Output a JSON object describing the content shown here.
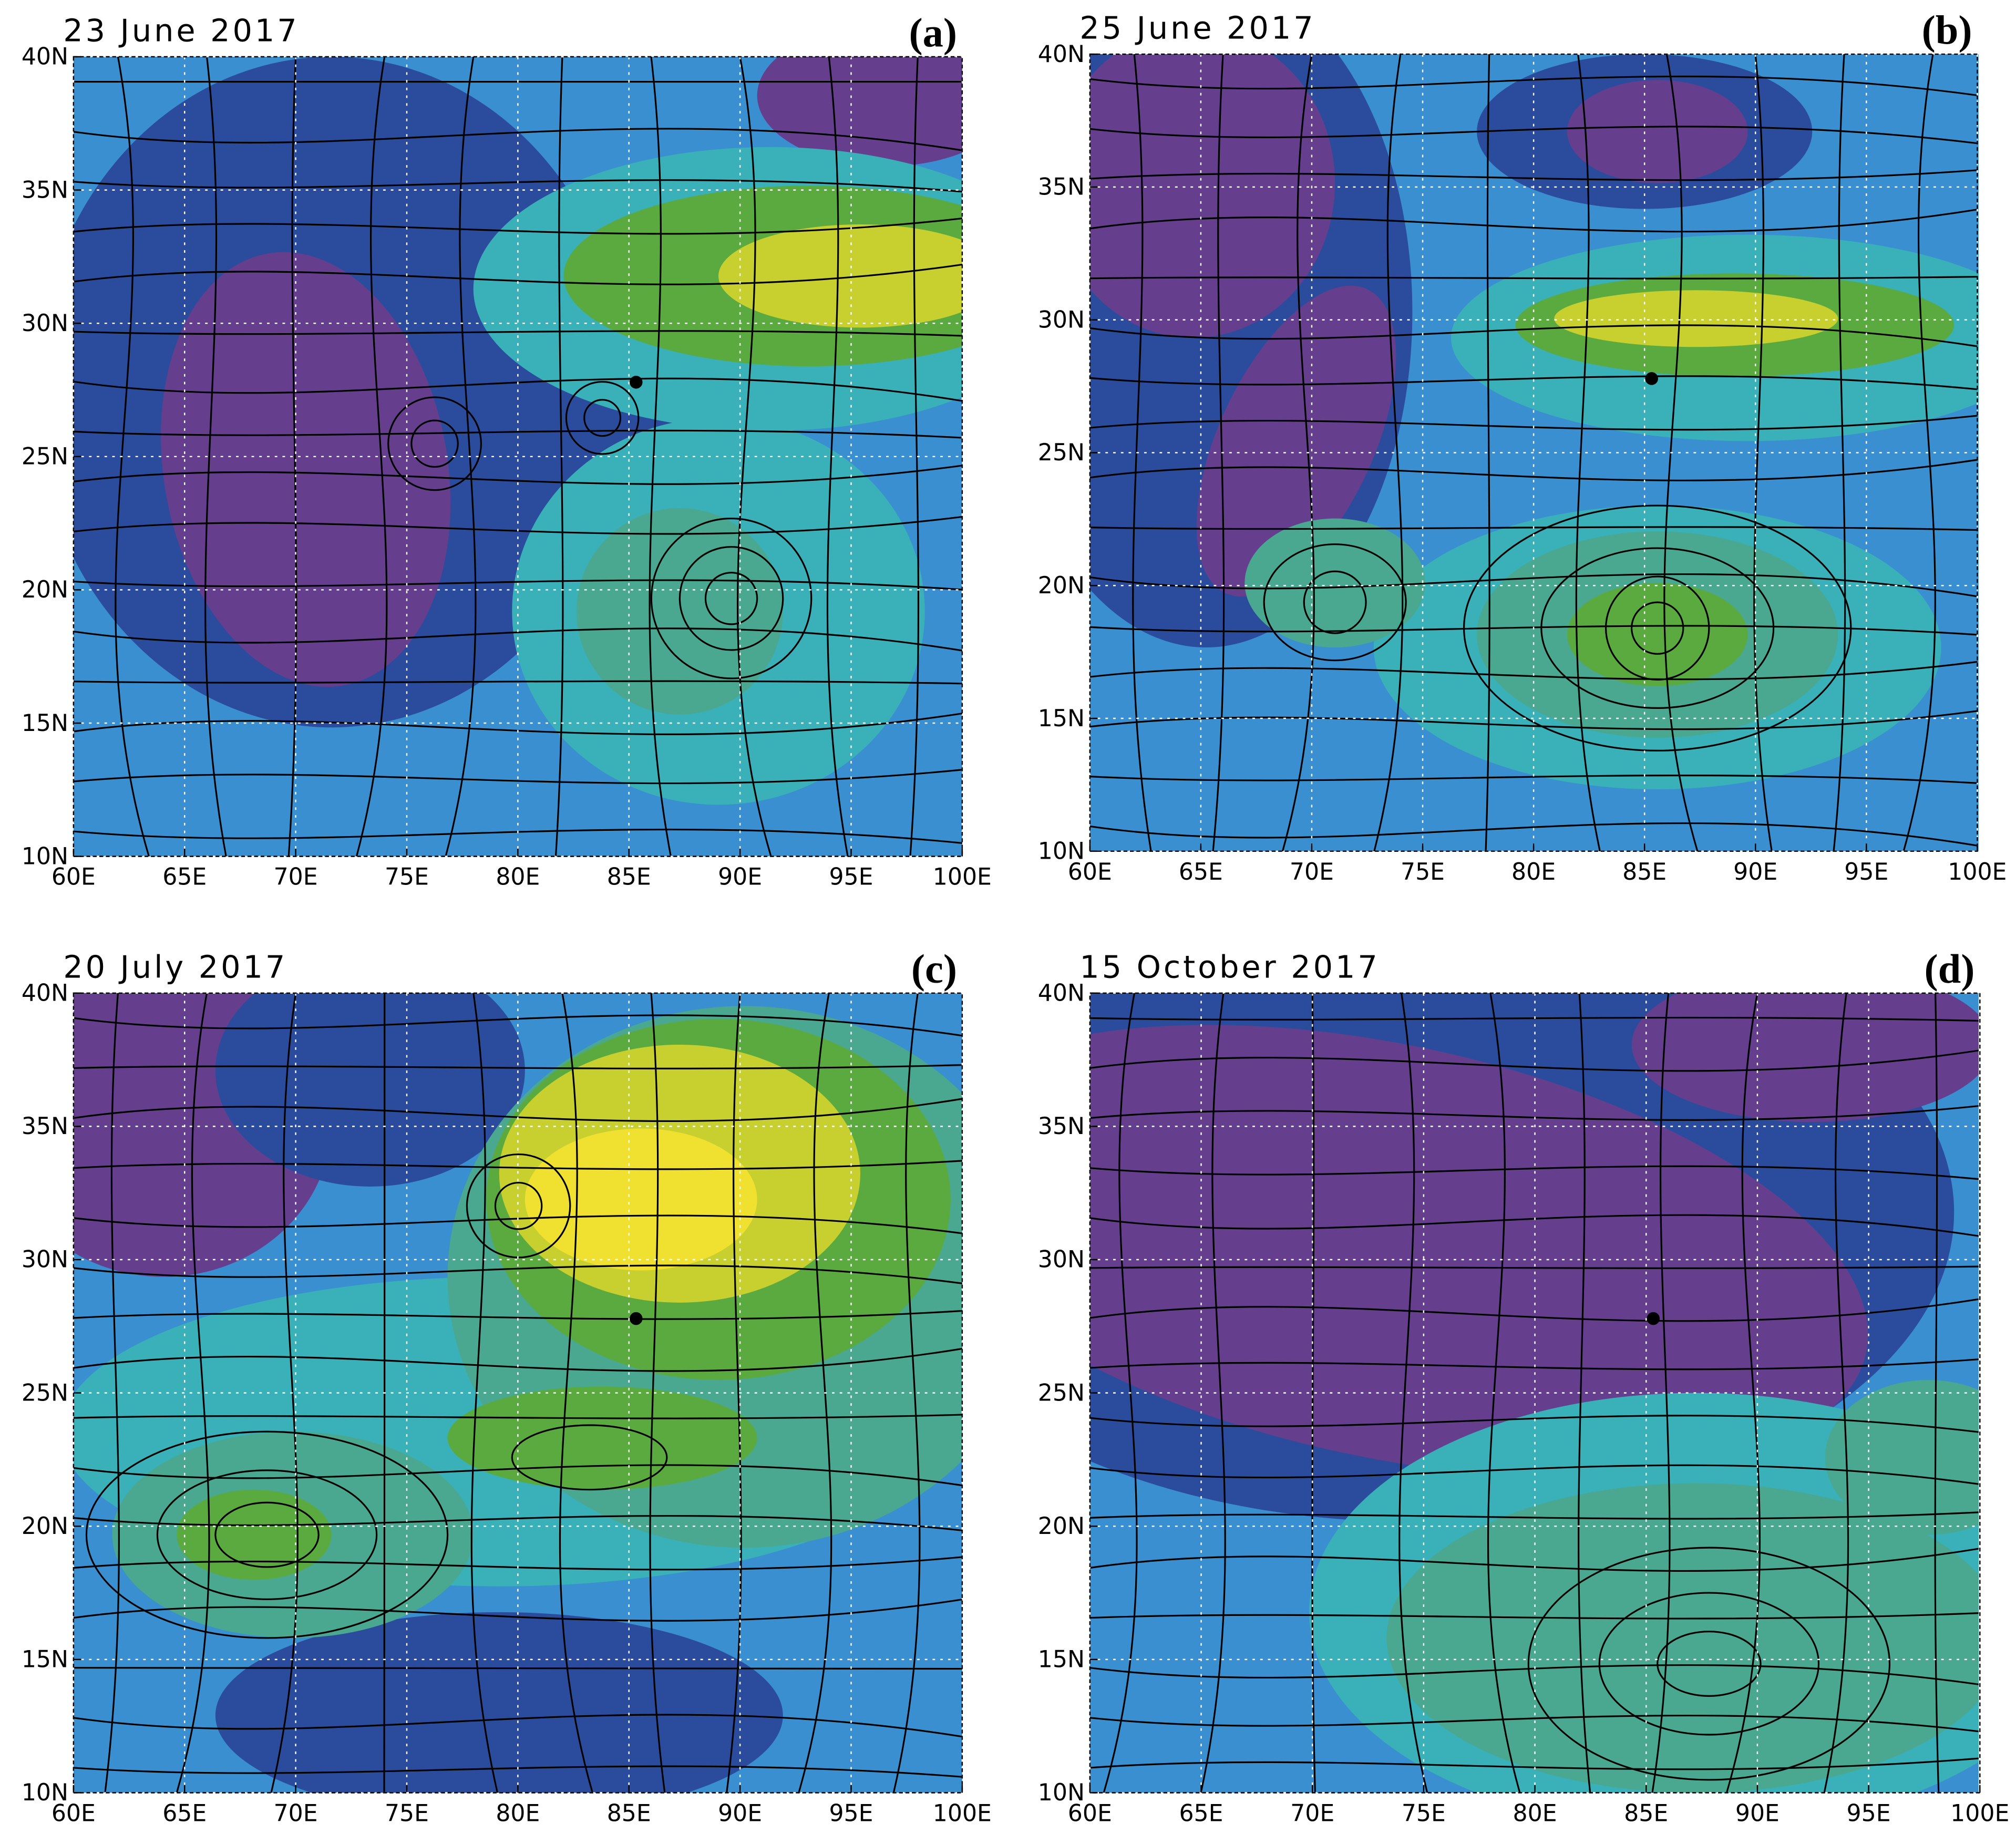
{
  "panels": [
    {
      "title": "23 June 2017",
      "label": "(a)"
    },
    {
      "title": "25 June 2017",
      "label": "(b)"
    },
    {
      "title": "20 July 2017",
      "label": "(c)"
    },
    {
      "title": "15 October 2017",
      "label": "(d)"
    }
  ],
  "xticks": [
    {
      "value": 60,
      "label": "60E"
    },
    {
      "value": 65,
      "label": "65E"
    },
    {
      "value": 70,
      "label": "70E"
    },
    {
      "value": 75,
      "label": "75E"
    },
    {
      "value": 80,
      "label": "80E"
    },
    {
      "value": 85,
      "label": "85E"
    },
    {
      "value": 90,
      "label": "90E"
    },
    {
      "value": 95,
      "label": "95E"
    },
    {
      "value": 100,
      "label": "100E"
    }
  ],
  "yticks": [
    {
      "value": 10,
      "label": "10N"
    },
    {
      "value": 15,
      "label": "15N"
    },
    {
      "value": 20,
      "label": "20N"
    },
    {
      "value": 25,
      "label": "25N"
    },
    {
      "value": 30,
      "label": "30N"
    },
    {
      "value": 35,
      "label": "35N"
    },
    {
      "value": 40,
      "label": "40N"
    }
  ],
  "xlim": [
    60,
    100
  ],
  "ylim": [
    10,
    40
  ]
}
